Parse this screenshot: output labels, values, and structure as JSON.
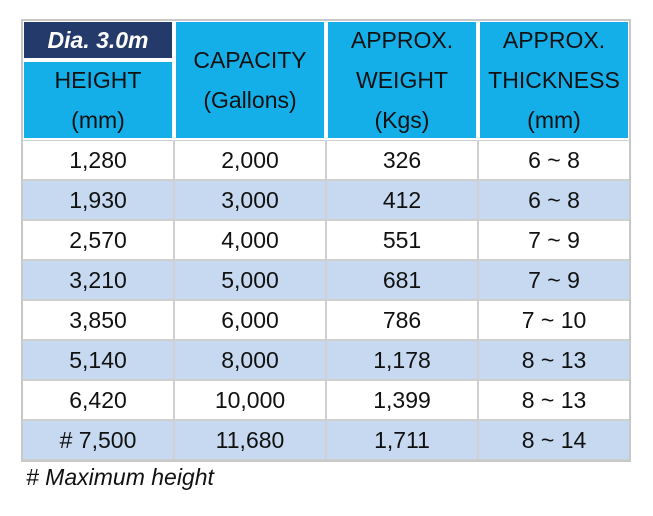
{
  "table": {
    "badge": "Dia. 3.0m",
    "header": [
      [
        "HEIGHT",
        "(mm)"
      ],
      [
        "CAPACITY",
        "(Gallons)"
      ],
      [
        "APPROX.",
        "WEIGHT",
        "(Kgs)"
      ],
      [
        "APPROX.",
        "THICKNESS",
        "(mm)"
      ]
    ],
    "rows": [
      [
        "1,280",
        "2,000",
        "326",
        "6 ~ 8"
      ],
      [
        "1,930",
        "3,000",
        "412",
        "6 ~ 8"
      ],
      [
        "2,570",
        "4,000",
        "551",
        "7 ~ 9"
      ],
      [
        "3,210",
        "5,000",
        "681",
        "7 ~ 9"
      ],
      [
        "3,850",
        "6,000",
        "786",
        "7 ~ 10"
      ],
      [
        "5,140",
        "8,000",
        "1,178",
        "8 ~ 13"
      ],
      [
        "6,420",
        "10,000",
        "1,399",
        "8 ~ 13"
      ],
      [
        "# 7,500",
        "11,680",
        "1,711",
        "8 ~ 14"
      ]
    ],
    "note": "# Maximum height"
  }
}
